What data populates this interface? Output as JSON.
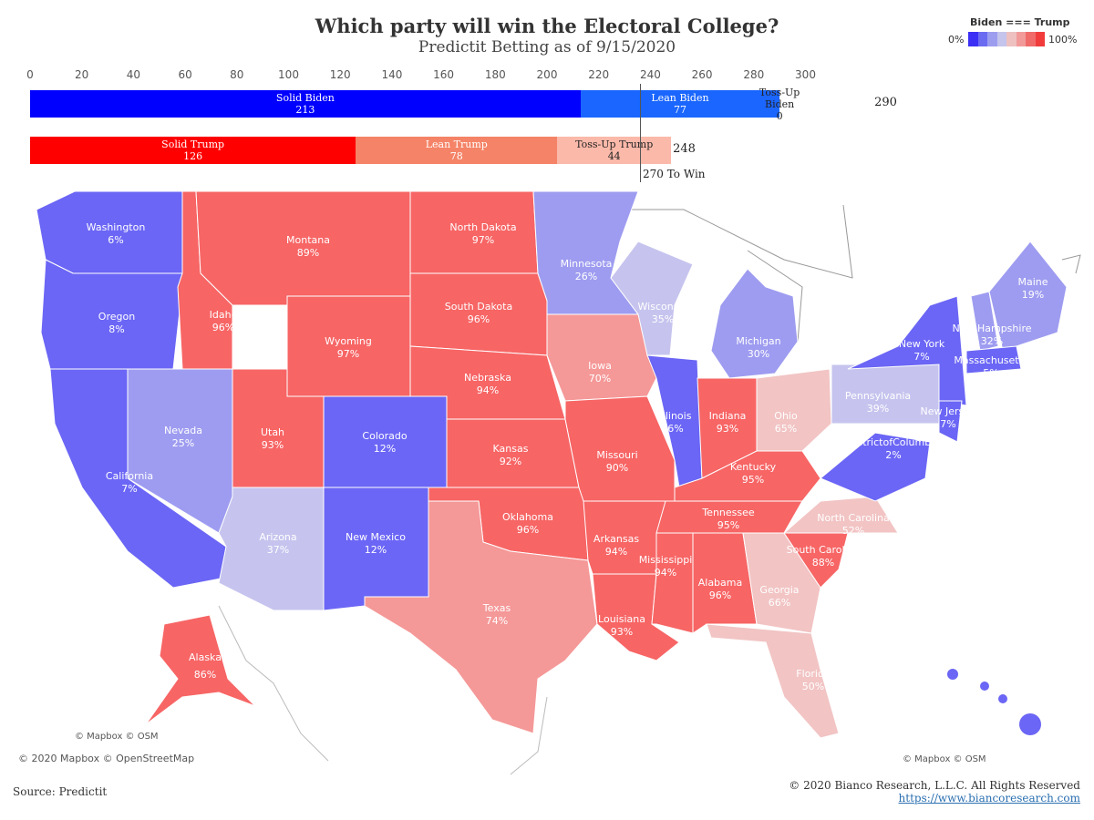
{
  "title": "Which party will win the Electoral College?",
  "subtitle": "Predictit Betting as of 9/15/2020",
  "legend": {
    "title": "Biden === Trump",
    "min_label": "0%",
    "max_label": "100%",
    "colors": [
      "#3b2ff5",
      "#6b6bf2",
      "#9d9df0",
      "#c4c4ec",
      "#eec0c0",
      "#f29a9a",
      "#f06a6a",
      "#f23c3c"
    ]
  },
  "colors": {
    "solid_biden": "#0000ff",
    "lean_biden": "#1a66ff",
    "solid_trump": "#ff0000",
    "lean_trump": "#f58367",
    "tossup_trump": "#fbb9aa"
  },
  "chart_data": {
    "type": "bar",
    "axis_ticks": [
      0,
      20,
      40,
      60,
      80,
      100,
      120,
      140,
      160,
      180,
      200,
      220,
      240,
      260,
      280,
      300
    ],
    "xlim": [
      0,
      300
    ],
    "threshold_label": "270 To Win",
    "biden": {
      "total": "290",
      "segments": [
        {
          "name": "Solid Biden",
          "value": 213
        },
        {
          "name": "Lean Biden",
          "value": 77
        },
        {
          "name": "Toss-Up Biden",
          "value": 0
        }
      ]
    },
    "trump": {
      "total": "248",
      "segments": [
        {
          "name": "Solid Trump",
          "value": 126
        },
        {
          "name": "Lean Trump",
          "value": 78
        },
        {
          "name": "Toss-Up Trump",
          "value": 44
        }
      ]
    }
  },
  "states": [
    {
      "name": "Washington",
      "pct": "6%"
    },
    {
      "name": "Oregon",
      "pct": "8%"
    },
    {
      "name": "California",
      "pct": "7%"
    },
    {
      "name": "Nevada",
      "pct": "25%"
    },
    {
      "name": "Idaho",
      "pct": "96%"
    },
    {
      "name": "Montana",
      "pct": "89%"
    },
    {
      "name": "Wyoming",
      "pct": "97%"
    },
    {
      "name": "Utah",
      "pct": "93%"
    },
    {
      "name": "Arizona",
      "pct": "37%"
    },
    {
      "name": "Colorado",
      "pct": "12%"
    },
    {
      "name": "New Mexico",
      "pct": "12%"
    },
    {
      "name": "North Dakota",
      "pct": "97%"
    },
    {
      "name": "South Dakota",
      "pct": "96%"
    },
    {
      "name": "Nebraska",
      "pct": "94%"
    },
    {
      "name": "Kansas",
      "pct": "92%"
    },
    {
      "name": "Oklahoma",
      "pct": "96%"
    },
    {
      "name": "Texas",
      "pct": "74%"
    },
    {
      "name": "Minnesota",
      "pct": "26%"
    },
    {
      "name": "Iowa",
      "pct": "70%"
    },
    {
      "name": "Missouri",
      "pct": "90%"
    },
    {
      "name": "Arkansas",
      "pct": "94%"
    },
    {
      "name": "Louisiana",
      "pct": "93%"
    },
    {
      "name": "Wisconsin",
      "pct": "35%"
    },
    {
      "name": "Illinois",
      "pct": "6%"
    },
    {
      "name": "Michigan",
      "pct": "30%"
    },
    {
      "name": "Indiana",
      "pct": "93%"
    },
    {
      "name": "Ohio",
      "pct": "65%"
    },
    {
      "name": "Kentucky",
      "pct": "95%"
    },
    {
      "name": "Tennessee",
      "pct": "95%"
    },
    {
      "name": "Mississippi",
      "pct": "94%"
    },
    {
      "name": "Alabama",
      "pct": "96%"
    },
    {
      "name": "Georgia",
      "pct": "66%"
    },
    {
      "name": "Florida",
      "pct": "50%"
    },
    {
      "name": "South Carolina",
      "pct": "88%"
    },
    {
      "name": "North Carolina",
      "pct": "52%"
    },
    {
      "name": "Pennsylvania",
      "pct": "39%"
    },
    {
      "name": "New York",
      "pct": "7%"
    },
    {
      "name": "New Hampshire",
      "pct": "32%"
    },
    {
      "name": "Maine",
      "pct": "19%"
    },
    {
      "name": "Massachusetts",
      "pct": "5%"
    },
    {
      "name": "New Jersey",
      "pct": "7%"
    },
    {
      "name": "DistrictofColumbia",
      "pct": "2%"
    },
    {
      "name": "Alaska",
      "pct": "86%"
    }
  ],
  "map_colors": {
    "strong_biden": "#6b66f5",
    "lean_biden": "#9e9cf0",
    "light_biden": "#c6c4ee",
    "light_trump": "#f2c4c4",
    "lean_trump": "#f59898",
    "strong_trump": "#f76565",
    "border": "#ffffff",
    "outline": "#888888"
  },
  "attributions": {
    "mapbox_small": "© Mapbox © OSM",
    "mapbox_full": "© 2020 Mapbox © OpenStreetMap",
    "mapbox_small_right": "© Mapbox © OSM"
  },
  "footer": {
    "source": "Source: Predictit",
    "copyright": "© 2020 Bianco Research, L.L.C. All Rights Reserved",
    "url": "https://www.biancoresearch.com"
  }
}
